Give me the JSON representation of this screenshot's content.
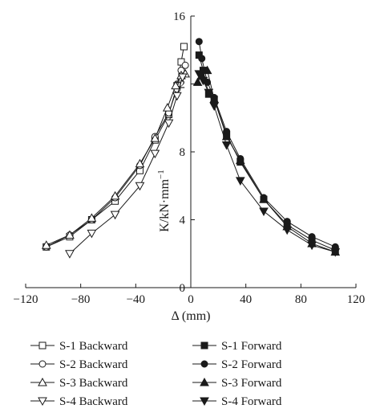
{
  "chart_data": {
    "type": "scatter",
    "xlabel": "Δ (mm)",
    "ylabel": "K/kN·mm",
    "ylabel_sup": "−1",
    "xlim": [
      -120,
      120
    ],
    "ylim": [
      0,
      16
    ],
    "xticks": [
      -120,
      -80,
      -40,
      0,
      40,
      80,
      120
    ],
    "xtick_labels": [
      "−120",
      "−80",
      "−40",
      "0",
      "40",
      "80",
      "120"
    ],
    "yticks": [
      0,
      4,
      8,
      12,
      16
    ],
    "ytick_labels": [
      "0",
      "4",
      "8",
      "12",
      "16"
    ],
    "grid": false,
    "legend_position": "bottom",
    "series": [
      {
        "name": "S-1 Backward",
        "marker": "square",
        "filled": false,
        "x": [
          -105,
          -88,
          -72,
          -55,
          -37,
          -26,
          -16,
          -10,
          -7,
          -5
        ],
        "y": [
          2.4,
          3.0,
          4.0,
          5.1,
          6.9,
          8.7,
          10.2,
          11.9,
          13.3,
          14.2
        ]
      },
      {
        "name": "S-2 Backward",
        "marker": "circle",
        "filled": false,
        "x": [
          -105,
          -88,
          -72,
          -55,
          -37,
          -26,
          -16,
          -10,
          -7,
          -4
        ],
        "y": [
          2.4,
          3.1,
          4.0,
          5.3,
          7.2,
          8.9,
          10.3,
          11.7,
          12.8,
          13.1
        ]
      },
      {
        "name": "S-3 Backward",
        "marker": "triangle-up",
        "filled": false,
        "x": [
          -105,
          -88,
          -72,
          -55,
          -37,
          -26,
          -17,
          -11,
          -7,
          -4
        ],
        "y": [
          2.5,
          3.1,
          4.1,
          5.4,
          7.3,
          8.8,
          10.6,
          11.9,
          12.5,
          12.6
        ]
      },
      {
        "name": "S-4 Backward",
        "marker": "triangle-down",
        "filled": false,
        "x": [
          -88,
          -72,
          -55,
          -37,
          -26,
          -16,
          -10,
          -6
        ],
        "y": [
          2.0,
          3.2,
          4.3,
          6.0,
          7.9,
          9.7,
          11.3,
          12.4
        ]
      },
      {
        "name": "S-1 Forward",
        "marker": "square",
        "filled": true,
        "x": [
          6,
          9,
          13,
          17,
          26,
          36,
          53,
          70,
          88,
          105
        ],
        "y": [
          13.7,
          12.8,
          11.4,
          11.1,
          9.0,
          7.4,
          5.2,
          3.7,
          2.8,
          2.2
        ]
      },
      {
        "name": "S-2 Forward",
        "marker": "circle",
        "filled": true,
        "x": [
          6,
          8,
          12,
          17,
          26,
          36,
          53,
          70,
          88,
          105
        ],
        "y": [
          14.5,
          13.5,
          12.1,
          11.2,
          9.2,
          7.6,
          5.3,
          3.9,
          3.0,
          2.4
        ]
      },
      {
        "name": "S-3 Forward",
        "marker": "triangle-up",
        "filled": true,
        "x": [
          5,
          8,
          12,
          17,
          26,
          36,
          53,
          70,
          88,
          105
        ],
        "y": [
          12.1,
          12.5,
          12.8,
          11.1,
          8.9,
          7.5,
          5.2,
          3.6,
          2.6,
          2.1
        ]
      },
      {
        "name": "S-4 Forward",
        "marker": "triangle-down",
        "filled": true,
        "x": [
          6,
          9,
          13,
          17,
          26,
          36,
          53,
          70,
          88,
          105
        ],
        "y": [
          12.6,
          12.2,
          11.5,
          10.7,
          8.4,
          6.3,
          4.5,
          3.4,
          2.5,
          2.1
        ]
      }
    ]
  }
}
